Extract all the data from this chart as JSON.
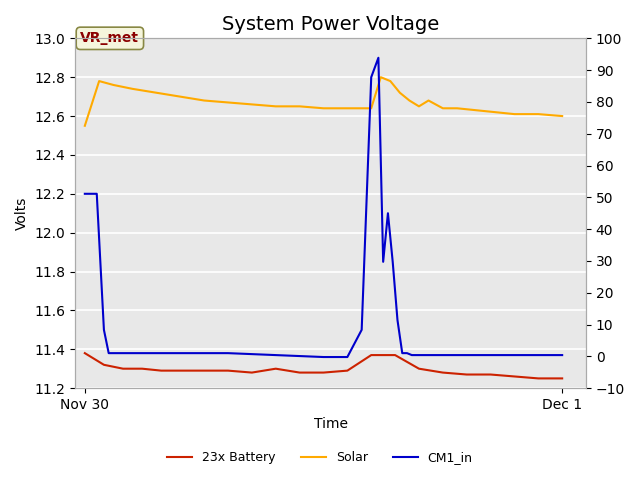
{
  "title": "System Power Voltage",
  "xlabel": "Time",
  "ylabel": "Volts",
  "ylabel_right": "",
  "ylim_left": [
    11.2,
    13.0
  ],
  "ylim_right": [
    -10,
    100
  ],
  "background_color": "#ffffff",
  "plot_bg_color": "#e8e8e8",
  "grid_color": "#ffffff",
  "title_fontsize": 14,
  "label_fontsize": 10,
  "vr_met_label": "VR_met",
  "vr_met_color": "#8B0000",
  "vr_met_bg": "#f5f5dc",
  "legend_items": [
    {
      "label": "23x Battery",
      "color": "#cc2200",
      "ls": "-"
    },
    {
      "label": "Solar",
      "color": "#ffaa00",
      "ls": "-"
    },
    {
      "label": "CM1_in",
      "color": "#0000cc",
      "ls": "-"
    }
  ],
  "xtick_labels": [
    "Nov 30",
    "Dec 1"
  ],
  "xtick_positions": [
    0.0,
    1.0
  ],
  "yticks_left": [
    11.2,
    11.4,
    11.6,
    11.8,
    12.0,
    12.2,
    12.4,
    12.6,
    12.8,
    13.0
  ],
  "yticks_right": [
    -10,
    0,
    10,
    20,
    30,
    40,
    50,
    60,
    70,
    80,
    90,
    100
  ],
  "battery_x": [
    0.0,
    0.04,
    0.08,
    0.12,
    0.16,
    0.2,
    0.25,
    0.3,
    0.35,
    0.4,
    0.45,
    0.5,
    0.55,
    0.6,
    0.65,
    0.7,
    0.75,
    0.8,
    0.85,
    0.9,
    0.95,
    1.0
  ],
  "battery_y": [
    11.38,
    11.32,
    11.3,
    11.3,
    11.29,
    11.29,
    11.29,
    11.29,
    11.28,
    11.3,
    11.28,
    11.28,
    11.29,
    11.37,
    11.37,
    11.3,
    11.28,
    11.27,
    11.27,
    11.26,
    11.25,
    11.25
  ],
  "solar_x": [
    0.0,
    0.03,
    0.06,
    0.1,
    0.15,
    0.2,
    0.25,
    0.3,
    0.35,
    0.4,
    0.45,
    0.5,
    0.55,
    0.6,
    0.62,
    0.64,
    0.66,
    0.68,
    0.7,
    0.72,
    0.75,
    0.78,
    0.82,
    0.86,
    0.9,
    0.95,
    1.0
  ],
  "solar_y": [
    12.55,
    12.78,
    12.76,
    12.74,
    12.72,
    12.7,
    12.68,
    12.67,
    12.66,
    12.65,
    12.65,
    12.64,
    12.64,
    12.64,
    12.8,
    12.78,
    12.72,
    12.68,
    12.65,
    12.68,
    12.64,
    12.64,
    12.63,
    12.62,
    12.61,
    12.61,
    12.6
  ],
  "cm1_x": [
    0.0,
    0.025,
    0.04,
    0.05,
    0.1,
    0.2,
    0.3,
    0.4,
    0.5,
    0.55,
    0.58,
    0.6,
    0.615,
    0.625,
    0.635,
    0.645,
    0.655,
    0.665,
    0.675,
    0.685,
    0.695,
    0.705,
    0.72,
    0.74,
    0.76,
    0.8,
    0.9,
    1.0
  ],
  "cm1_y": [
    12.2,
    12.2,
    11.5,
    11.38,
    11.38,
    11.38,
    11.38,
    11.37,
    11.36,
    11.36,
    11.5,
    12.8,
    12.9,
    11.85,
    12.1,
    11.85,
    11.55,
    11.38,
    11.38,
    11.37,
    11.37,
    11.37,
    11.37,
    11.37,
    11.37,
    11.37,
    11.37,
    11.37
  ]
}
